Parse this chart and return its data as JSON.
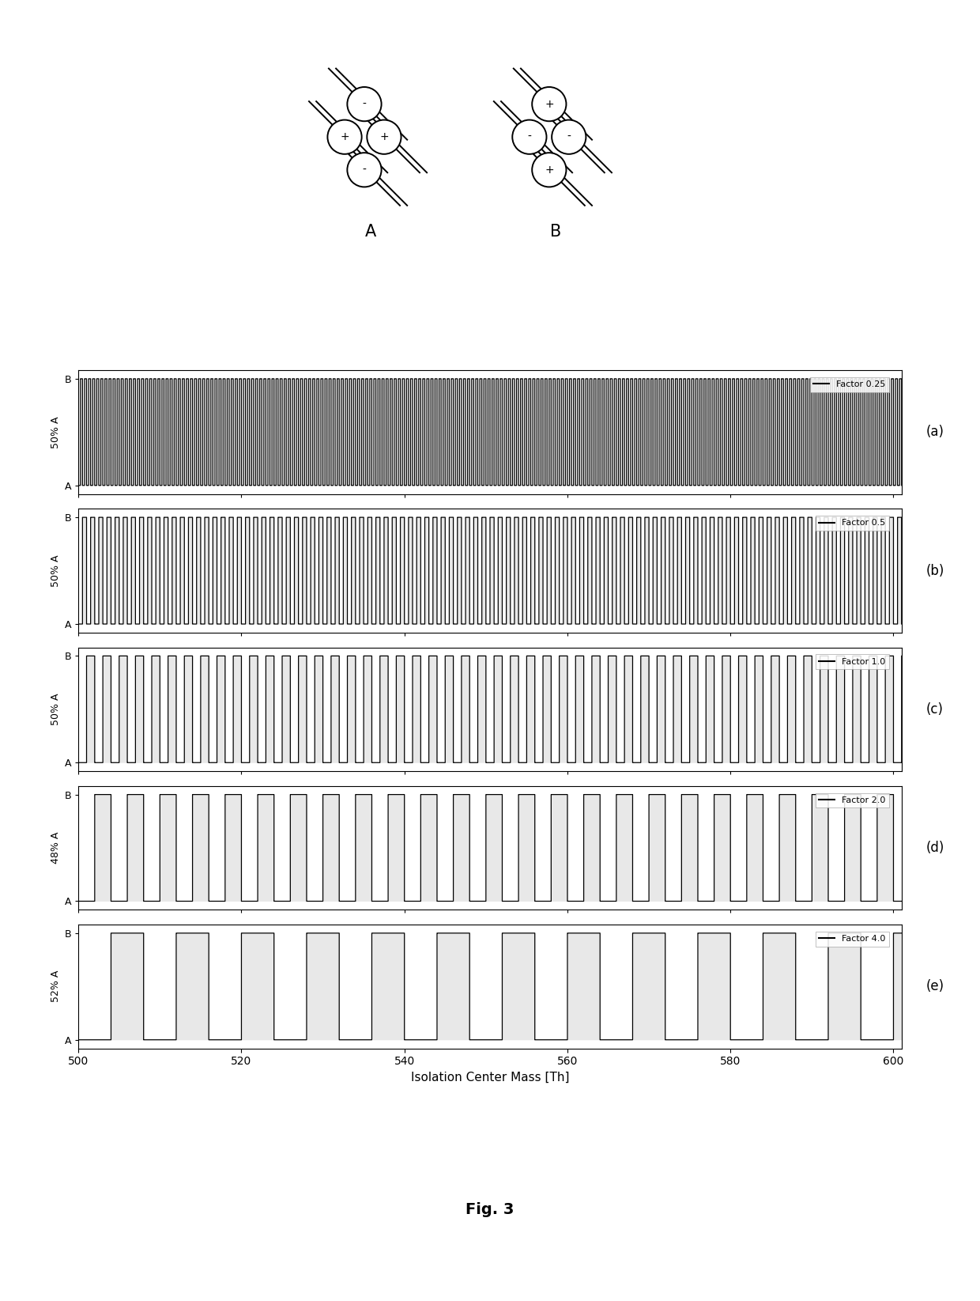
{
  "fig_width": 12.4,
  "fig_height": 16.45,
  "x_min": 500,
  "x_max": 601,
  "x_ticks": [
    500,
    520,
    540,
    560,
    580,
    600
  ],
  "xlabel": "Isolation Center Mass [Th]",
  "panel_labels": [
    "(a)",
    "(b)",
    "(c)",
    "(d)",
    "(e)"
  ],
  "legend_labels": [
    "Factor 0.25",
    "Factor 0.5",
    "Factor 1.0",
    "Factor 2.0",
    "Factor 4.0"
  ],
  "factors": [
    0.25,
    0.5,
    1.0,
    2.0,
    4.0
  ],
  "ylabels": [
    "50% A",
    "50% A",
    "50% A",
    "48% A",
    "52% A"
  ],
  "fig3_label": "Fig. 3",
  "bg_color": "#e8e8e8",
  "line_color": "#000000",
  "base_period_Th": 2.0
}
